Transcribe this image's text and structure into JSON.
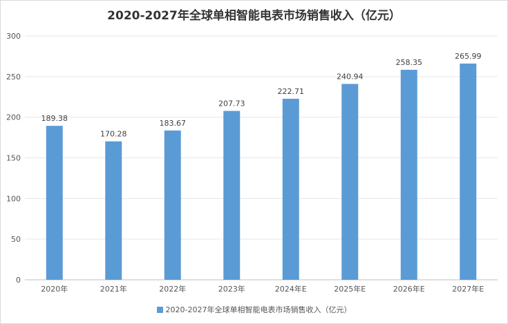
{
  "chart_data": {
    "type": "bar",
    "title": "2020-2027年全球单相智能电表市场销售收入（亿元）",
    "categories": [
      "2020年",
      "2021年",
      "2022年",
      "2023年",
      "2024年E",
      "2025年E",
      "2026年E",
      "2027年E"
    ],
    "series": [
      {
        "name": "2020-2027年全球单相智能电表市场销售收入（亿元）",
        "values": [
          189.38,
          170.28,
          183.67,
          207.73,
          222.71,
          240.94,
          258.35,
          265.99
        ],
        "color": "#5b9bd5"
      }
    ],
    "data_labels": [
      "189.38",
      "170.28",
      "183.67",
      "207.73",
      "222.71",
      "240.94",
      "258.35",
      "265.99"
    ],
    "yticks": [
      "0",
      "50",
      "100",
      "150",
      "200",
      "250",
      "300"
    ],
    "ylim": [
      0,
      300
    ],
    "grid": true,
    "legend_position": "bottom"
  }
}
